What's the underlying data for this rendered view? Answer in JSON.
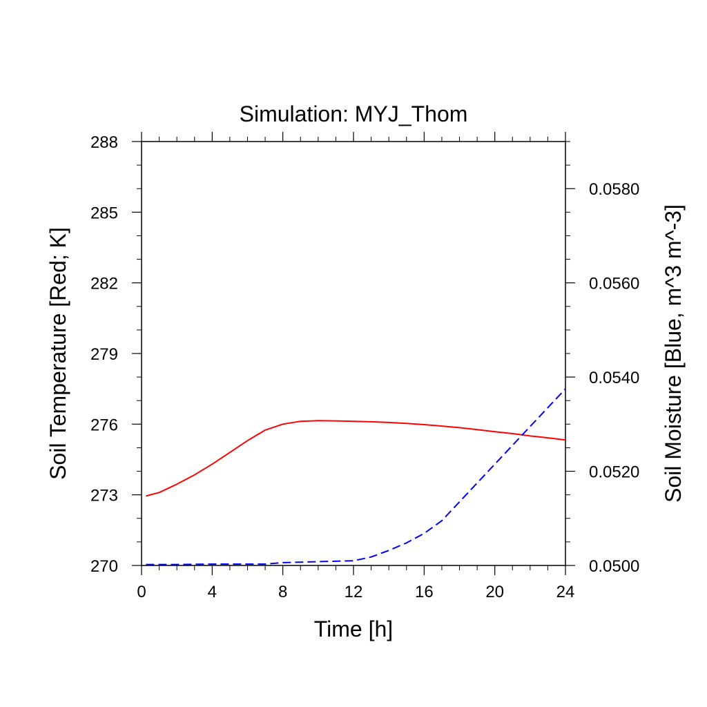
{
  "chart_data": {
    "type": "line",
    "title": "Simulation: MYJ_Thom",
    "xlabel": "Time [h]",
    "ylabel_left": "Soil Temperature [Red; K]",
    "ylabel_right": "Soil Moisture [Blue, m^3 m^-3]",
    "xlim": [
      0,
      24
    ],
    "ylim_left": [
      270,
      288
    ],
    "ylim_right": [
      0.05,
      0.059
    ],
    "xticks": [
      "0",
      "4",
      "8",
      "12",
      "16",
      "20",
      "24"
    ],
    "yticks_left": [
      "270",
      "273",
      "276",
      "279",
      "282",
      "285",
      "288"
    ],
    "yticks_right": [
      "0.0500",
      "0.0520",
      "0.0540",
      "0.0560",
      "0.0580"
    ],
    "grid": false,
    "series": [
      {
        "axis": "left",
        "color": "#ff0000",
        "style": "solid",
        "x": [
          0.25,
          1,
          2,
          3,
          4,
          5,
          6,
          7,
          8,
          9,
          10,
          11,
          12,
          13,
          14,
          15,
          16,
          17,
          18,
          19,
          20,
          21,
          22,
          23,
          24
        ],
        "y": [
          272.95,
          273.1,
          273.45,
          273.85,
          274.3,
          274.8,
          275.3,
          275.75,
          276.0,
          276.12,
          276.15,
          276.14,
          276.12,
          276.1,
          276.07,
          276.03,
          275.98,
          275.92,
          275.85,
          275.77,
          275.68,
          275.6,
          275.5,
          275.42,
          275.33
        ]
      },
      {
        "axis": "right",
        "color": "#0000ff",
        "style": "dashed",
        "x": [
          0.25,
          2,
          4,
          6,
          7,
          8,
          10,
          12,
          13,
          14,
          15,
          16,
          17,
          18,
          19,
          20,
          21,
          22,
          23,
          24
        ],
        "y": [
          0.05002,
          0.05002,
          0.05003,
          0.05003,
          0.05003,
          0.05006,
          0.05008,
          0.0501,
          0.05018,
          0.05032,
          0.05048,
          0.05068,
          0.05095,
          0.05135,
          0.05175,
          0.05215,
          0.05255,
          0.05295,
          0.05335,
          0.05375
        ]
      }
    ]
  }
}
